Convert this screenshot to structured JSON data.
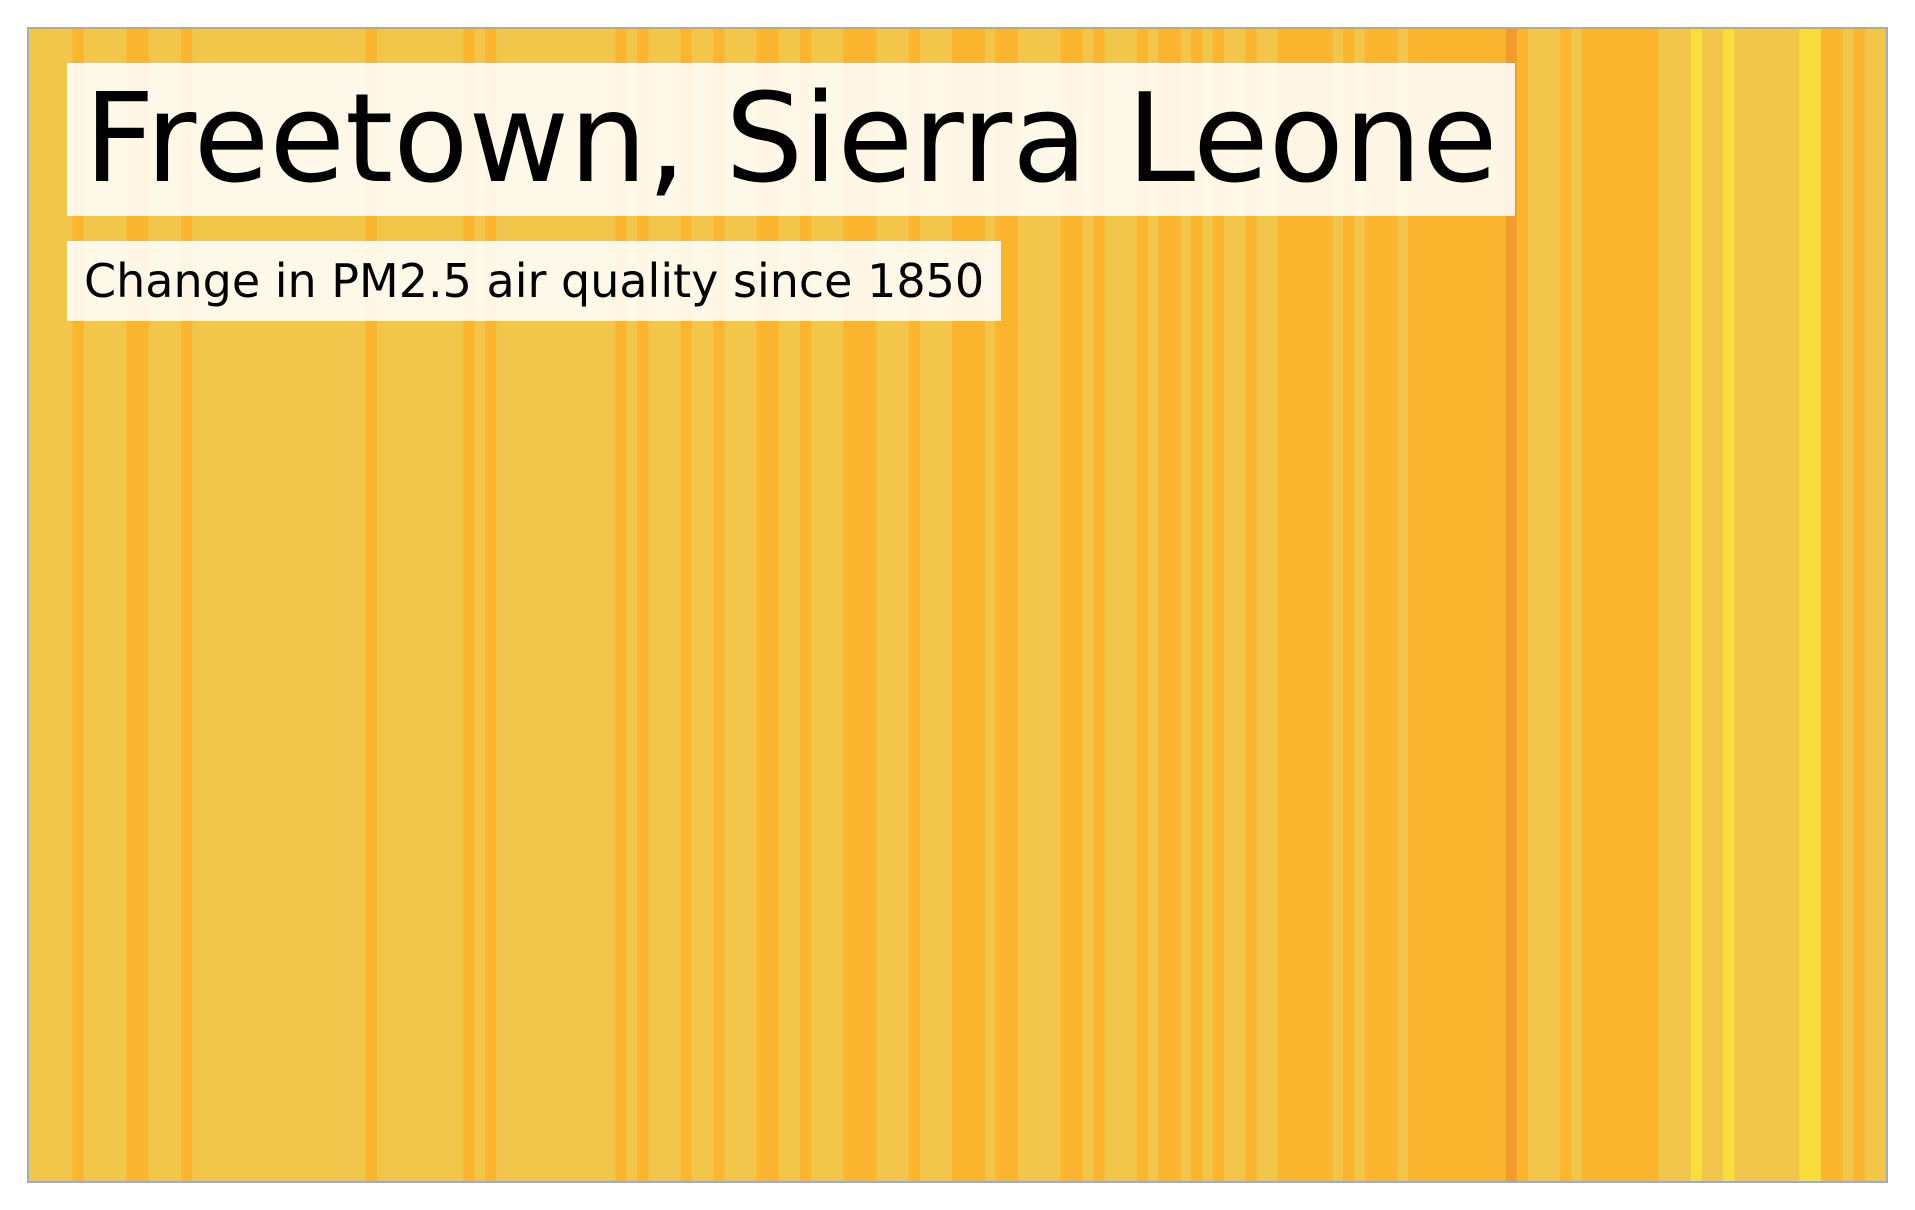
{
  "chart_data": {
    "type": "heatmap",
    "title": "Freetown, Sierra Leone",
    "subtitle": "Change in PM2.5 air quality since 1850",
    "xlabel": "",
    "ylabel": "",
    "grid": false,
    "legend": "none",
    "start_year": 1850,
    "end_year": 2021,
    "colors": {
      "base": "#f2c54b",
      "mid": "#fbb52f",
      "high": "#f29a2e",
      "low": "#f8dd3d",
      "frame": "#a3acb9"
    },
    "stripes": [
      {
        "from": 1854,
        "to": 1855,
        "level": "mid"
      },
      {
        "from": 1859,
        "to": 1861,
        "level": "mid"
      },
      {
        "from": 1864,
        "to": 1865,
        "level": "mid"
      },
      {
        "from": 1881,
        "to": 1882,
        "level": "mid"
      },
      {
        "from": 1890,
        "to": 1891,
        "level": "mid"
      },
      {
        "from": 1892,
        "to": 1893,
        "level": "mid"
      },
      {
        "from": 1904,
        "to": 1905,
        "level": "mid"
      },
      {
        "from": 1906,
        "to": 1907,
        "level": "mid"
      },
      {
        "from": 1910,
        "to": 1911,
        "level": "mid"
      },
      {
        "from": 1913,
        "to": 1914,
        "level": "mid"
      },
      {
        "from": 1917,
        "to": 1919,
        "level": "mid"
      },
      {
        "from": 1921,
        "to": 1922,
        "level": "mid"
      },
      {
        "from": 1925,
        "to": 1928,
        "level": "mid"
      },
      {
        "from": 1931,
        "to": 1932,
        "level": "mid"
      },
      {
        "from": 1935,
        "to": 1938,
        "level": "mid"
      },
      {
        "from": 1939,
        "to": 1941,
        "level": "mid"
      },
      {
        "from": 1945,
        "to": 1947,
        "level": "mid"
      },
      {
        "from": 1948,
        "to": 1949,
        "level": "mid"
      },
      {
        "from": 1952,
        "to": 1953,
        "level": "mid"
      },
      {
        "from": 1954,
        "to": 1956,
        "level": "mid"
      },
      {
        "from": 1957,
        "to": 1958,
        "level": "mid"
      },
      {
        "from": 1959,
        "to": 1960,
        "level": "mid"
      },
      {
        "from": 1962,
        "to": 1963,
        "level": "mid"
      },
      {
        "from": 1965,
        "to": 1970,
        "level": "mid"
      },
      {
        "from": 1971,
        "to": 1972,
        "level": "mid"
      },
      {
        "from": 1973,
        "to": 1976,
        "level": "mid"
      },
      {
        "from": 1977,
        "to": 1986,
        "level": "mid"
      },
      {
        "from": 1986,
        "to": 1987,
        "level": "high"
      },
      {
        "from": 1987,
        "to": 1988,
        "level": "mid"
      },
      {
        "from": 1991,
        "to": 1992,
        "level": "mid"
      },
      {
        "from": 1993,
        "to": 2000,
        "level": "mid"
      },
      {
        "from": 2003,
        "to": 2004,
        "level": "low"
      },
      {
        "from": 2006,
        "to": 2007,
        "level": "low"
      },
      {
        "from": 2013,
        "to": 2015,
        "level": "low"
      },
      {
        "from": 2015,
        "to": 2017,
        "level": "mid"
      },
      {
        "from": 2018,
        "to": 2019,
        "level": "mid"
      }
    ]
  }
}
